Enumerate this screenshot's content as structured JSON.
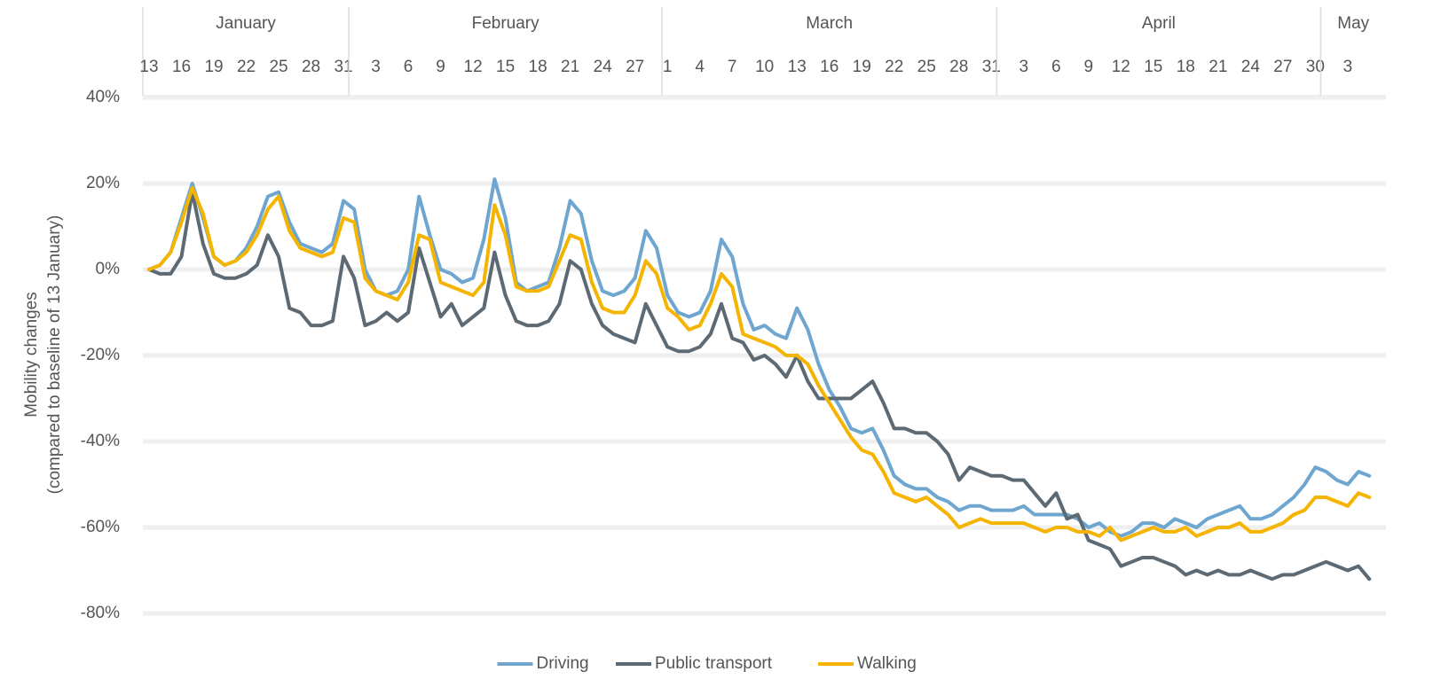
{
  "chart_data": {
    "type": "line",
    "ylabel": [
      "Mobility changes",
      "(compared to baseline of 13 January)"
    ],
    "months": [
      "January",
      "February",
      "March",
      "April",
      "May"
    ],
    "categories": [
      "13",
      null,
      null,
      "16",
      null,
      null,
      "19",
      null,
      null,
      "22",
      null,
      null,
      "25",
      null,
      null,
      "28",
      null,
      null,
      "31",
      null,
      null,
      "3",
      null,
      null,
      "6",
      null,
      null,
      "9",
      null,
      null,
      "12",
      null,
      null,
      "15",
      null,
      null,
      "18",
      null,
      null,
      "21",
      null,
      null,
      "24",
      null,
      null,
      "27",
      null,
      null,
      "1",
      null,
      null,
      "4",
      null,
      null,
      "7",
      null,
      null,
      "10",
      null,
      null,
      "13",
      null,
      null,
      "16",
      null,
      null,
      "19",
      null,
      null,
      "22",
      null,
      null,
      "25",
      null,
      null,
      "28",
      null,
      null,
      "31",
      null,
      null,
      "3",
      null,
      null,
      "6",
      null,
      null,
      "9",
      null,
      null,
      "12",
      null,
      null,
      "15",
      null,
      null,
      "18",
      null,
      null,
      "21",
      null,
      null,
      "24",
      null,
      null,
      "27",
      null,
      null,
      "30",
      null,
      null,
      "3",
      null,
      null
    ],
    "series": [
      {
        "name": "Driving",
        "color": "#6ea6cf",
        "values": [
          0,
          1,
          4,
          12,
          20,
          12,
          3,
          1,
          2,
          5,
          10,
          17,
          18,
          11,
          6,
          5,
          4,
          6,
          16,
          14,
          0,
          -5,
          -6,
          -5,
          0,
          17,
          8,
          0,
          -1,
          -3,
          -2,
          7,
          21,
          12,
          -3,
          -5,
          -4,
          -3,
          5,
          16,
          13,
          2,
          -5,
          -6,
          -5,
          -2,
          9,
          5,
          -6,
          -10,
          -11,
          -10,
          -5,
          7,
          3,
          -8,
          -14,
          -13,
          -15,
          -16,
          -9,
          -14,
          -22,
          -28,
          -32,
          -37,
          -38,
          -37,
          -42,
          -48,
          -50,
          -51,
          -51,
          -53,
          -54,
          -56,
          -55,
          -55,
          -56,
          -56,
          -56,
          -55,
          -57,
          -57,
          -57,
          -57,
          -58,
          -60,
          -59,
          -61,
          -62,
          -61,
          -59,
          -59,
          -60,
          -58,
          -59,
          -60,
          -58,
          -57,
          -56,
          -55,
          -58,
          -58,
          -57,
          -55,
          -53,
          -50,
          -46,
          -47,
          -49,
          -50,
          -47,
          -48
        ]
      },
      {
        "name": "Public transport",
        "color": "#5d6a74",
        "values": [
          0,
          -1,
          -1,
          3,
          18,
          6,
          -1,
          -2,
          -2,
          -1,
          1,
          8,
          3,
          -9,
          -10,
          -13,
          -13,
          -12,
          3,
          -2,
          -13,
          -12,
          -10,
          -12,
          -10,
          5,
          -3,
          -11,
          -8,
          -13,
          -11,
          -9,
          4,
          -6,
          -12,
          -13,
          -13,
          -12,
          -8,
          2,
          0,
          -8,
          -13,
          -15,
          -16,
          -17,
          -8,
          -13,
          -18,
          -19,
          -19,
          -18,
          -15,
          -8,
          -16,
          -17,
          -21,
          -20,
          -22,
          -25,
          -20,
          -26,
          -30,
          -30,
          -30,
          -30,
          -28,
          -26,
          -31,
          -37,
          -37,
          -38,
          -38,
          -40,
          -43,
          -49,
          -46,
          -47,
          -48,
          -48,
          -49,
          -49,
          -52,
          -55,
          -52,
          -58,
          -57,
          -63,
          -64,
          -65,
          -69,
          -68,
          -67,
          -67,
          -68,
          -69,
          -71,
          -70,
          -71,
          -70,
          -71,
          -71,
          -70,
          -71,
          -72,
          -71,
          -71,
          -70,
          -69,
          -68,
          -69,
          -70,
          -69,
          -72
        ]
      },
      {
        "name": "Walking",
        "color": "#f4b400",
        "values": [
          0,
          1,
          4,
          11,
          19,
          13,
          3,
          1,
          2,
          4,
          8,
          14,
          17,
          9,
          5,
          4,
          3,
          4,
          12,
          11,
          -2,
          -5,
          -6,
          -7,
          -3,
          8,
          7,
          -3,
          -4,
          -5,
          -6,
          -3,
          15,
          8,
          -4,
          -5,
          -5,
          -4,
          2,
          8,
          7,
          -3,
          -9,
          -10,
          -10,
          -6,
          2,
          -1,
          -9,
          -11,
          -14,
          -13,
          -8,
          -1,
          -4,
          -15,
          -16,
          -17,
          -18,
          -20,
          -20,
          -22,
          -27,
          -31,
          -35,
          -39,
          -42,
          -43,
          -47,
          -52,
          -53,
          -54,
          -53,
          -55,
          -57,
          -60,
          -59,
          -58,
          -59,
          -59,
          -59,
          -59,
          -60,
          -61,
          -60,
          -60,
          -61,
          -61,
          -62,
          -60,
          -63,
          -62,
          -61,
          -60,
          -61,
          -61,
          -60,
          -62,
          -61,
          -60,
          -60,
          -59,
          -61,
          -61,
          -60,
          -59,
          -57,
          -56,
          -53,
          -53,
          -54,
          -55,
          -52,
          -53
        ]
      }
    ],
    "ylim": [
      -80,
      40
    ],
    "yticks": [
      {
        "value": -80,
        "label": "-80%"
      },
      {
        "value": -60,
        "label": "-60%"
      },
      {
        "value": -40,
        "label": "-40%"
      },
      {
        "value": -20,
        "label": "-20%"
      },
      {
        "value": 0,
        "label": "0%"
      },
      {
        "value": 20,
        "label": "20%"
      },
      {
        "value": 40,
        "label": "40%"
      }
    ],
    "grid": true,
    "legend": "bottom"
  }
}
